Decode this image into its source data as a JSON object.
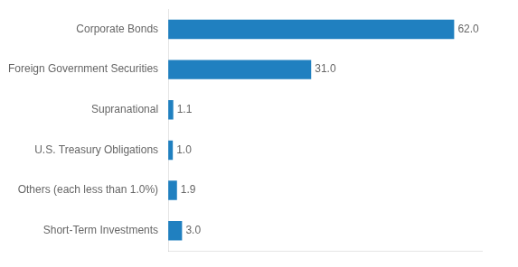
{
  "chart_data": {
    "type": "bar",
    "orientation": "horizontal",
    "categories": [
      "Short-Term Investments",
      "Others (each less than 1.0%)",
      "U.S. Treasury Obligations",
      "Supranational",
      "Foreign Government Securities",
      "Corporate Bonds"
    ],
    "values": [
      3.0,
      1.9,
      1.0,
      1.1,
      31.0,
      62.0
    ],
    "value_labels": [
      "3.0",
      "1.9",
      "1.0",
      "1.1",
      "31.0",
      "62.0"
    ],
    "color": "#2080c0",
    "xlim": [
      0,
      68
    ],
    "xticks": [],
    "grid": false,
    "data_labels": true,
    "tick_labels": "y"
  }
}
